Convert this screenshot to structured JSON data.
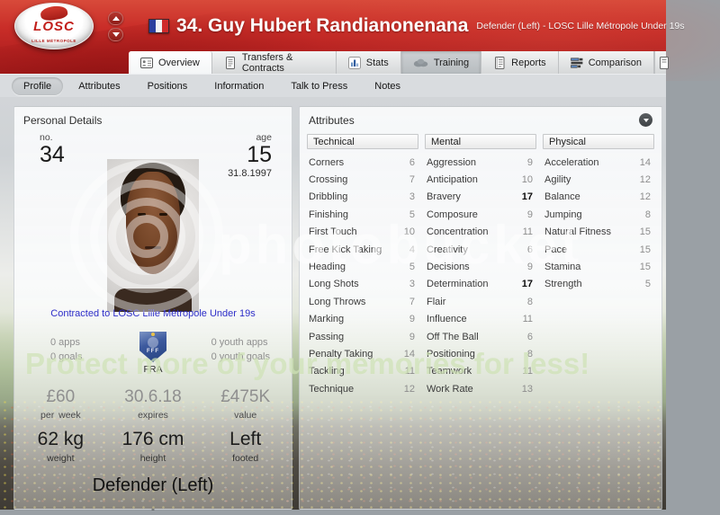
{
  "header": {
    "club": "LOSC",
    "club_sub": "LILLE MÉTROPOLE",
    "player_title": "34. Guy Hubert Randianonenana",
    "player_subtitle": "Defender (Left) - LOSC Lille Métropole Under 19s"
  },
  "tabs": [
    {
      "label": "Overview",
      "active": true
    },
    {
      "label": "Transfers & Contracts",
      "active": false
    },
    {
      "label": "Stats",
      "active": false
    },
    {
      "label": "Training",
      "active": false
    },
    {
      "label": "Reports",
      "active": false
    },
    {
      "label": "Comparison",
      "active": false
    }
  ],
  "subtabs": [
    {
      "label": "Profile",
      "active": true
    },
    {
      "label": "Attributes",
      "active": false
    },
    {
      "label": "Positions",
      "active": false
    },
    {
      "label": "Information",
      "active": false
    },
    {
      "label": "Talk to Press",
      "active": false
    },
    {
      "label": "Notes",
      "active": false
    }
  ],
  "personal": {
    "title": "Personal Details",
    "no_label": "no.",
    "no_value": "34",
    "age_label": "age",
    "age_value": "15",
    "birth_date": "31.8.1997",
    "contract_link": "Contracted to LOSC Lille Métropole Under 19s",
    "apps": "0 apps",
    "goals": "0 goals",
    "nation_code": "FRA",
    "nation_badge": "FFF",
    "youth_apps": "0 youth apps",
    "youth_goals": "0 youth goals",
    "wage_value": "£60",
    "wage_label": "per week",
    "expires_value": "30.6.18",
    "expires_label": "expires",
    "value_value": "£475K",
    "value_label": "value",
    "weight_value": "62 kg",
    "weight_label": "weight",
    "height_value": "176 cm",
    "height_label": "height",
    "foot_value": "Left",
    "foot_label": "footed",
    "position": "Defender (Left)",
    "position_note": "-"
  },
  "attributes": {
    "title": "Attributes",
    "groups": [
      {
        "name": "Technical",
        "rows": [
          [
            "Corners",
            6
          ],
          [
            "Crossing",
            7
          ],
          [
            "Dribbling",
            3
          ],
          [
            "Finishing",
            5
          ],
          [
            "First Touch",
            10
          ],
          [
            "Free Kick Taking",
            4
          ],
          [
            "Heading",
            5
          ],
          [
            "Long Shots",
            3
          ],
          [
            "Long Throws",
            7
          ],
          [
            "Marking",
            9
          ],
          [
            "Passing",
            9
          ],
          [
            "Penalty Taking",
            14
          ],
          [
            "Tackling",
            11
          ],
          [
            "Technique",
            12
          ]
        ]
      },
      {
        "name": "Mental",
        "rows": [
          [
            "Aggression",
            9
          ],
          [
            "Anticipation",
            10
          ],
          [
            "Bravery",
            17
          ],
          [
            "Composure",
            9
          ],
          [
            "Concentration",
            11
          ],
          [
            "Creativity",
            6
          ],
          [
            "Decisions",
            9
          ],
          [
            "Determination",
            17
          ],
          [
            "Flair",
            8
          ],
          [
            "Influence",
            11
          ],
          [
            "Off The Ball",
            6
          ],
          [
            "Positioning",
            8
          ],
          [
            "Teamwork",
            11
          ],
          [
            "Work Rate",
            13
          ]
        ]
      },
      {
        "name": "Physical",
        "rows": [
          [
            "Acceleration",
            14
          ],
          [
            "Agility",
            12
          ],
          [
            "Balance",
            12
          ],
          [
            "Jumping",
            8
          ],
          [
            "Natural Fitness",
            15
          ],
          [
            "Pace",
            15
          ],
          [
            "Stamina",
            15
          ],
          [
            "Strength",
            5
          ]
        ]
      }
    ]
  },
  "watermark": {
    "brand": "photobucket",
    "banner": "Protect more of your memories for less!"
  },
  "colors": {
    "header_red": "#c92d28",
    "link_blue": "#2d2dc8",
    "attribute_highlight": "#0c0c0c"
  }
}
